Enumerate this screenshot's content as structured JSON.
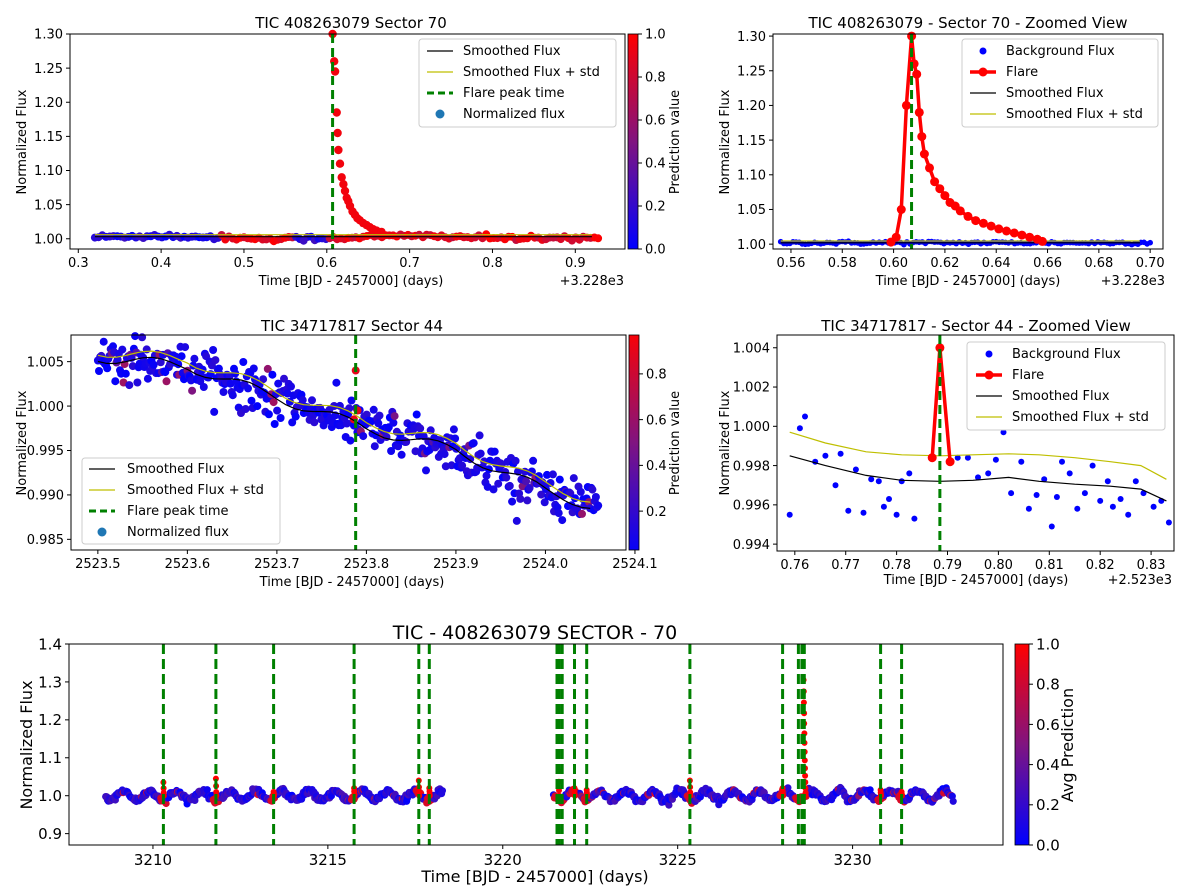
{
  "chart_data": [
    {
      "id": "p1",
      "type": "scatter",
      "title": "TIC 408263079 Sector 70",
      "xlabel": "Time [BJD - 2457000] (days)",
      "ylabel": "Normalized Flux",
      "x_offset_label": "+3.228e3",
      "xlim": [
        0.29,
        0.96
      ],
      "ylim": [
        0.985,
        1.3
      ],
      "xticks": [
        0.3,
        0.4,
        0.5,
        0.6,
        0.7,
        0.8,
        0.9
      ],
      "xtick_labels": [
        "0.3",
        "0.4",
        "0.5",
        "0.6",
        "0.7",
        "0.8",
        "0.9"
      ],
      "yticks": [
        1.0,
        1.05,
        1.1,
        1.15,
        1.2,
        1.25,
        1.3
      ],
      "ytick_labels": [
        "1.00",
        "1.05",
        "1.10",
        "1.15",
        "1.20",
        "1.25",
        "1.30"
      ],
      "colorbar": {
        "label": "Prediction value",
        "range": [
          0.0,
          1.0
        ],
        "ticks": [
          0.0,
          0.2,
          0.4,
          0.6,
          0.8,
          1.0
        ],
        "tick_labels": [
          "0.0",
          "0.2",
          "0.4",
          "0.6",
          "0.8",
          "1.0"
        ]
      },
      "legend": {
        "placement": "top-right",
        "entries": [
          "Smoothed Flux",
          "Smoothed Flux + std",
          "Flare peak time",
          "Normalized flux"
        ]
      },
      "flare_peak_time": 0.607,
      "baseline": {
        "x_range": [
          0.32,
          0.93
        ],
        "mean": 1.002,
        "scatter": 0.004
      },
      "red_segments": [
        [
          0.47,
          0.56
        ],
        [
          0.6,
          0.93
        ]
      ],
      "flare_points": [
        [
          0.607,
          1.3
        ],
        [
          0.609,
          1.26
        ],
        [
          0.61,
          1.245
        ],
        [
          0.612,
          1.185
        ],
        [
          0.613,
          1.155
        ],
        [
          0.614,
          1.13
        ],
        [
          0.616,
          1.11
        ],
        [
          0.618,
          1.09
        ],
        [
          0.62,
          1.08
        ],
        [
          0.622,
          1.07
        ],
        [
          0.624,
          1.06
        ],
        [
          0.626,
          1.055
        ],
        [
          0.628,
          1.048
        ],
        [
          0.631,
          1.04
        ],
        [
          0.634,
          1.035
        ],
        [
          0.637,
          1.03
        ],
        [
          0.64,
          1.027
        ],
        [
          0.644,
          1.023
        ],
        [
          0.648,
          1.02
        ],
        [
          0.652,
          1.017
        ],
        [
          0.656,
          1.014
        ],
        [
          0.66,
          1.012
        ],
        [
          0.666,
          1.01
        ]
      ]
    },
    {
      "id": "p2",
      "type": "line",
      "title": "TIC 408263079 - Sector 70 - Zoomed View",
      "xlabel": "Time [BJD - 2457000] (days)",
      "ylabel": "Normalized Flux",
      "x_offset_label": "+3.228e3",
      "xlim": [
        0.553,
        0.705
      ],
      "ylim": [
        0.993,
        1.303
      ],
      "xticks": [
        0.56,
        0.58,
        0.6,
        0.62,
        0.64,
        0.66,
        0.68,
        0.7
      ],
      "xtick_labels": [
        "0.56",
        "0.58",
        "0.60",
        "0.62",
        "0.64",
        "0.66",
        "0.68",
        "0.70"
      ],
      "yticks": [
        1.0,
        1.05,
        1.1,
        1.15,
        1.2,
        1.25,
        1.3
      ],
      "ytick_labels": [
        "1.00",
        "1.05",
        "1.10",
        "1.15",
        "1.20",
        "1.25",
        "1.30"
      ],
      "legend": {
        "placement": "top-right",
        "entries": [
          "Background Flux",
          "Flare",
          "Smoothed Flux",
          "Smoothed Flux + std"
        ]
      },
      "flare_peak_time": 0.607,
      "background": {
        "x_range": [
          0.556,
          0.7
        ],
        "mean": 1.002,
        "scatter": 0.003
      },
      "flare": [
        [
          0.599,
          1.003
        ],
        [
          0.601,
          1.01
        ],
        [
          0.603,
          1.05
        ],
        [
          0.605,
          1.2
        ],
        [
          0.607,
          1.3
        ],
        [
          0.608,
          1.26
        ],
        [
          0.609,
          1.245
        ],
        [
          0.61,
          1.19
        ],
        [
          0.611,
          1.155
        ],
        [
          0.612,
          1.13
        ],
        [
          0.614,
          1.11
        ],
        [
          0.616,
          1.09
        ],
        [
          0.618,
          1.08
        ],
        [
          0.62,
          1.07
        ],
        [
          0.622,
          1.06
        ],
        [
          0.624,
          1.055
        ],
        [
          0.626,
          1.048
        ],
        [
          0.629,
          1.04
        ],
        [
          0.632,
          1.034
        ],
        [
          0.635,
          1.03
        ],
        [
          0.638,
          1.026
        ],
        [
          0.641,
          1.022
        ],
        [
          0.644,
          1.019
        ],
        [
          0.647,
          1.016
        ],
        [
          0.65,
          1.013
        ],
        [
          0.653,
          1.01
        ],
        [
          0.656,
          1.007
        ],
        [
          0.658,
          1.004
        ]
      ]
    },
    {
      "id": "p3",
      "type": "scatter",
      "title": "TIC 34717817 Sector 44",
      "xlabel": "Time [BJD - 2457000] (days)",
      "ylabel": "Normalized Flux",
      "xlim": [
        2523.47,
        2524.09
      ],
      "ylim": [
        0.9838,
        1.008
      ],
      "xticks": [
        2523.5,
        2523.6,
        2523.7,
        2523.8,
        2523.9,
        2524.0,
        2524.1
      ],
      "xtick_labels": [
        "2523.5",
        "2523.6",
        "2523.7",
        "2523.8",
        "2523.9",
        "2524.0",
        "2524.1"
      ],
      "yticks": [
        0.985,
        0.99,
        0.995,
        1.0,
        1.005
      ],
      "ytick_labels": [
        "0.985",
        "0.990",
        "0.995",
        "1.000",
        "1.005"
      ],
      "colorbar": {
        "label": "Prediction value",
        "range": [
          0.03,
          0.97
        ],
        "ticks": [
          0.2,
          0.4,
          0.6,
          0.8
        ],
        "tick_labels": [
          "0.2",
          "0.4",
          "0.6",
          "0.8"
        ]
      },
      "legend": {
        "placement": "lower-left",
        "entries": [
          "Smoothed Flux",
          "Smoothed Flux + std",
          "Flare peak time",
          "Normalized flux"
        ]
      },
      "flare_peak_time": 2523.788,
      "trend": [
        [
          2523.5,
          1.0055
        ],
        [
          2523.6,
          1.0045
        ],
        [
          2523.7,
          1.001
        ],
        [
          2523.8,
          0.9975
        ],
        [
          2523.9,
          0.995
        ],
        [
          2524.0,
          0.9905
        ],
        [
          2524.06,
          0.9885
        ]
      ],
      "scatter": 0.0022,
      "flare_points": [
        [
          2523.788,
          1.004
        ],
        [
          2523.79,
          0.9995
        ],
        [
          2523.786,
          0.9985
        ]
      ]
    },
    {
      "id": "p4",
      "type": "line",
      "title": "TIC 34717817 - Sector 44 - Zoomed View",
      "xlabel": "Time [BJD - 2457000] (days)",
      "ylabel": "Normalized Flux",
      "x_offset_label": "+2.523e3",
      "xlim": [
        0.7565,
        0.8345
      ],
      "ylim": [
        0.99365,
        1.00465
      ],
      "xticks": [
        0.76,
        0.77,
        0.78,
        0.79,
        0.8,
        0.81,
        0.82,
        0.83
      ],
      "xtick_labels": [
        "0.76",
        "0.77",
        "0.78",
        "0.79",
        "0.80",
        "0.81",
        "0.82",
        "0.83"
      ],
      "yticks": [
        0.994,
        0.996,
        0.998,
        1.0,
        1.002,
        1.004
      ],
      "ytick_labels": [
        "0.994",
        "0.996",
        "0.998",
        "1.000",
        "1.002",
        "1.004"
      ],
      "legend": {
        "placement": "top-right",
        "entries": [
          "Background Flux",
          "Flare",
          "Smoothed Flux",
          "Smoothed Flux + std"
        ]
      },
      "flare_peak_time": 0.7885,
      "background": [
        [
          0.759,
          0.9955
        ],
        [
          0.761,
          0.9999
        ],
        [
          0.762,
          1.0005
        ],
        [
          0.764,
          0.9982
        ],
        [
          0.766,
          0.9985
        ],
        [
          0.768,
          0.997
        ],
        [
          0.769,
          0.9986
        ],
        [
          0.7705,
          0.9957
        ],
        [
          0.772,
          0.9978
        ],
        [
          0.7735,
          0.9956
        ],
        [
          0.775,
          0.9973
        ],
        [
          0.7765,
          0.9972
        ],
        [
          0.7775,
          0.9959
        ],
        [
          0.7785,
          0.9963
        ],
        [
          0.78,
          0.9955
        ],
        [
          0.781,
          0.9972
        ],
        [
          0.7825,
          0.9976
        ],
        [
          0.7835,
          0.9953
        ],
        [
          0.792,
          0.9984
        ],
        [
          0.794,
          0.9984
        ],
        [
          0.796,
          0.9974
        ],
        [
          0.798,
          0.9976
        ],
        [
          0.7995,
          0.9983
        ],
        [
          0.801,
          0.9997
        ],
        [
          0.8025,
          0.9966
        ],
        [
          0.8045,
          0.9982
        ],
        [
          0.806,
          0.9958
        ],
        [
          0.8075,
          0.9965
        ],
        [
          0.809,
          0.9973
        ],
        [
          0.8105,
          0.9949
        ],
        [
          0.8115,
          0.9964
        ],
        [
          0.8125,
          0.9982
        ],
        [
          0.814,
          0.9976
        ],
        [
          0.8155,
          0.9958
        ],
        [
          0.817,
          0.9966
        ],
        [
          0.8185,
          0.998
        ],
        [
          0.82,
          0.9962
        ],
        [
          0.8215,
          0.9972
        ],
        [
          0.8225,
          0.9959
        ],
        [
          0.824,
          0.9963
        ],
        [
          0.8255,
          0.9955
        ],
        [
          0.827,
          0.9972
        ],
        [
          0.8285,
          0.9966
        ],
        [
          0.8305,
          0.9959
        ],
        [
          0.832,
          0.9962
        ],
        [
          0.8335,
          0.9951
        ]
      ],
      "flare": [
        [
          0.787,
          0.9984
        ],
        [
          0.7885,
          1.004
        ],
        [
          0.7905,
          0.9982
        ]
      ],
      "smoothed": [
        [
          0.759,
          0.9985
        ],
        [
          0.766,
          0.998
        ],
        [
          0.774,
          0.9975
        ],
        [
          0.781,
          0.99725
        ],
        [
          0.7885,
          0.9972
        ],
        [
          0.795,
          0.99725
        ],
        [
          0.802,
          0.9974
        ],
        [
          0.808,
          0.9972
        ],
        [
          0.815,
          0.99705
        ],
        [
          0.822,
          0.99695
        ],
        [
          0.828,
          0.9968
        ],
        [
          0.833,
          0.9962
        ]
      ],
      "smoothed_std": [
        [
          0.759,
          0.9997
        ],
        [
          0.766,
          0.99915
        ],
        [
          0.774,
          0.9987
        ],
        [
          0.781,
          0.99855
        ],
        [
          0.7885,
          0.9985
        ],
        [
          0.795,
          0.99855
        ],
        [
          0.802,
          0.9986
        ],
        [
          0.808,
          0.99855
        ],
        [
          0.815,
          0.9984
        ],
        [
          0.822,
          0.9982
        ],
        [
          0.828,
          0.998
        ],
        [
          0.833,
          0.9973
        ]
      ]
    },
    {
      "id": "p5",
      "type": "scatter",
      "title": "TIC - 408263079 SECTOR - 70",
      "xlabel": "Time [BJD - 2457000] (days)",
      "ylabel": "Normalized Flux",
      "xlim": [
        3207.6,
        3234.3
      ],
      "ylim": [
        0.87,
        1.4
      ],
      "xticks": [
        3210,
        3215,
        3220,
        3225,
        3230
      ],
      "xtick_labels": [
        "3210",
        "3215",
        "3220",
        "3225",
        "3230"
      ],
      "yticks": [
        0.9,
        1.0,
        1.1,
        1.2,
        1.3,
        1.4
      ],
      "ytick_labels": [
        "0.9",
        "1.0",
        "1.1",
        "1.2",
        "1.3",
        "1.4"
      ],
      "colorbar": {
        "label": "Avg Prediction",
        "range": [
          0.0,
          1.0
        ],
        "ticks": [
          0.0,
          0.2,
          0.4,
          0.6,
          0.8,
          1.0
        ],
        "tick_labels": [
          "0.0",
          "0.2",
          "0.4",
          "0.6",
          "0.8",
          "1.0"
        ]
      },
      "segments": [
        [
          3208.65,
          3218.3
        ],
        [
          3221.45,
          3232.9
        ]
      ],
      "flare_times": [
        3210.3,
        3211.8,
        3213.45,
        3215.75,
        3217.6,
        3217.9,
        3221.55,
        3221.62,
        3221.7,
        3222.05,
        3222.4,
        3225.35,
        3228.0,
        3228.45,
        3228.55,
        3228.62,
        3230.8,
        3231.4
      ],
      "flare_peaks": [
        [
          3210.3,
          1.035
        ],
        [
          3211.8,
          1.045
        ],
        [
          3213.45,
          1.01
        ],
        [
          3215.75,
          1.02
        ],
        [
          3217.6,
          1.04
        ],
        [
          3217.9,
          1.02
        ],
        [
          3221.6,
          1.065
        ],
        [
          3222.05,
          1.02
        ],
        [
          3222.4,
          1.015
        ],
        [
          3225.35,
          1.04
        ],
        [
          3228.0,
          1.02
        ],
        [
          3228.6,
          1.305
        ],
        [
          3230.8,
          1.015
        ],
        [
          3231.4,
          1.01
        ]
      ]
    }
  ]
}
